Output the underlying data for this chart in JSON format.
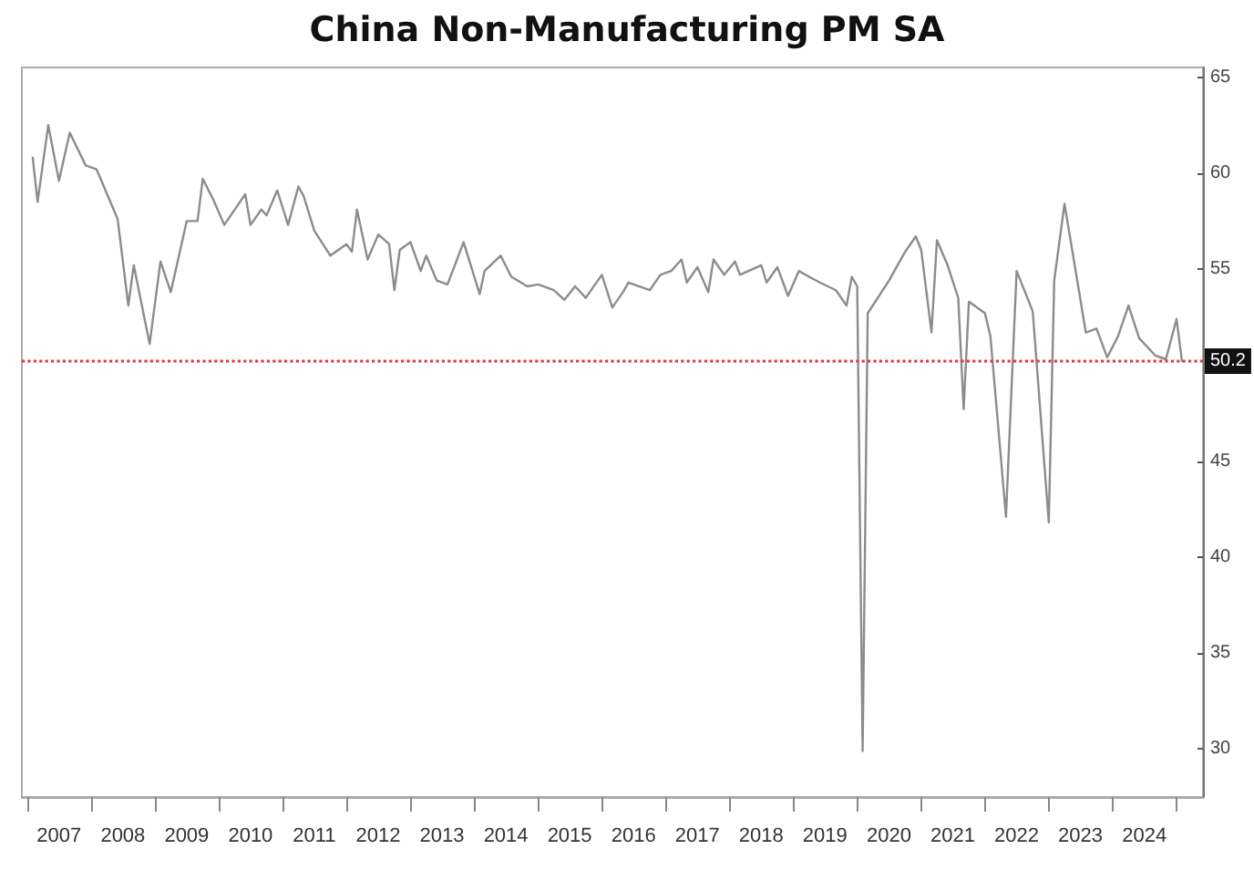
{
  "chart_data": {
    "type": "line",
    "title": "China Non-Manufacturing PM SA",
    "x": [
      "2007-02",
      "2007-03",
      "2007-05",
      "2007-07",
      "2007-09",
      "2007-12",
      "2008-02",
      "2008-06",
      "2008-08",
      "2008-09",
      "2008-12",
      "2009-02",
      "2009-04",
      "2009-07",
      "2009-09",
      "2009-10",
      "2009-12",
      "2010-02",
      "2010-06",
      "2010-07",
      "2010-09",
      "2010-10",
      "2010-12",
      "2011-02",
      "2011-04",
      "2011-05",
      "2011-07",
      "2011-10",
      "2012-01",
      "2012-02",
      "2012-03",
      "2012-05",
      "2012-07",
      "2012-09",
      "2012-10",
      "2012-11",
      "2013-01",
      "2013-03",
      "2013-04",
      "2013-06",
      "2013-08",
      "2013-11",
      "2014-02",
      "2014-03",
      "2014-06",
      "2014-08",
      "2014-11",
      "2015-01",
      "2015-04",
      "2015-06",
      "2015-08",
      "2015-10",
      "2016-01",
      "2016-03",
      "2016-05",
      "2016-06",
      "2016-10",
      "2016-12",
      "2017-02",
      "2017-04",
      "2017-05",
      "2017-07",
      "2017-09",
      "2017-10",
      "2017-12",
      "2018-02",
      "2018-03",
      "2018-07",
      "2018-08",
      "2018-10",
      "2018-12",
      "2019-02",
      "2019-04",
      "2019-06",
      "2019-09",
      "2019-11",
      "2019-12",
      "2020-01",
      "2020-02",
      "2020-03",
      "2020-07",
      "2020-10",
      "2020-12",
      "2021-01",
      "2021-03",
      "2021-04",
      "2021-06",
      "2021-08",
      "2021-09",
      "2021-10",
      "2022-01",
      "2022-02",
      "2022-05",
      "2022-07",
      "2022-10",
      "2023-01",
      "2023-02",
      "2023-04",
      "2023-08",
      "2023-10",
      "2023-12",
      "2024-02",
      "2024-04",
      "2024-06",
      "2024-09",
      "2024-11",
      "2025-01",
      "2025-02"
    ],
    "series": [
      {
        "color": "#8c8c8c",
        "values": [
          60.8,
          58.5,
          62.5,
          59.6,
          62.1,
          60.4,
          60.2,
          57.6,
          53.1,
          55.2,
          51.1,
          55.4,
          53.8,
          57.5,
          57.5,
          59.7,
          58.6,
          57.3,
          58.9,
          57.3,
          58.1,
          57.8,
          59.1,
          57.3,
          59.3,
          58.8,
          57.0,
          55.7,
          56.3,
          55.9,
          58.1,
          55.5,
          56.8,
          56.3,
          53.9,
          56.0,
          56.4,
          54.9,
          55.7,
          54.4,
          54.2,
          56.4,
          53.7,
          54.9,
          55.7,
          54.6,
          54.1,
          54.2,
          53.9,
          53.4,
          54.1,
          53.5,
          54.7,
          53.0,
          53.8,
          54.3,
          53.9,
          54.7,
          54.9,
          55.5,
          54.3,
          55.1,
          53.8,
          55.5,
          54.7,
          55.4,
          54.7,
          55.2,
          54.3,
          55.1,
          53.6,
          54.9,
          54.6,
          54.3,
          53.9,
          53.1,
          54.6,
          54.1,
          29.9,
          52.7,
          54.4,
          55.9,
          56.7,
          56.0,
          51.7,
          56.5,
          55.2,
          53.5,
          47.7,
          53.3,
          52.7,
          51.5,
          42.1,
          54.9,
          52.8,
          41.8,
          54.4,
          58.4,
          51.7,
          51.9,
          50.4,
          51.5,
          53.1,
          51.4,
          50.5,
          50.3,
          52.4,
          50.2
        ]
      }
    ],
    "xlim": [
      "2006-12",
      "2025-06"
    ],
    "xticks": [
      {
        "value": "2007-01",
        "label": null
      },
      {
        "value": "2007-07",
        "label": "2007"
      },
      {
        "value": "2008-01",
        "label": null
      },
      {
        "value": "2008-07",
        "label": "2008"
      },
      {
        "value": "2009-01",
        "label": null
      },
      {
        "value": "2009-07",
        "label": "2009"
      },
      {
        "value": "2010-01",
        "label": null
      },
      {
        "value": "2010-07",
        "label": "2010"
      },
      {
        "value": "2011-01",
        "label": null
      },
      {
        "value": "2011-07",
        "label": "2011"
      },
      {
        "value": "2012-01",
        "label": null
      },
      {
        "value": "2012-07",
        "label": "2012"
      },
      {
        "value": "2013-01",
        "label": null
      },
      {
        "value": "2013-07",
        "label": "2013"
      },
      {
        "value": "2014-01",
        "label": null
      },
      {
        "value": "2014-07",
        "label": "2014"
      },
      {
        "value": "2015-01",
        "label": null
      },
      {
        "value": "2015-07",
        "label": "2015"
      },
      {
        "value": "2016-01",
        "label": null
      },
      {
        "value": "2016-07",
        "label": "2016"
      },
      {
        "value": "2017-01",
        "label": null
      },
      {
        "value": "2017-07",
        "label": "2017"
      },
      {
        "value": "2018-01",
        "label": null
      },
      {
        "value": "2018-07",
        "label": "2018"
      },
      {
        "value": "2019-01",
        "label": null
      },
      {
        "value": "2019-07",
        "label": "2019"
      },
      {
        "value": "2020-01",
        "label": null
      },
      {
        "value": "2020-07",
        "label": "2020"
      },
      {
        "value": "2021-01",
        "label": null
      },
      {
        "value": "2021-07",
        "label": "2021"
      },
      {
        "value": "2022-01",
        "label": null
      },
      {
        "value": "2022-07",
        "label": "2022"
      },
      {
        "value": "2023-01",
        "label": null
      },
      {
        "value": "2023-07",
        "label": "2023"
      },
      {
        "value": "2024-01",
        "label": null
      },
      {
        "value": "2024-07",
        "label": "2024"
      },
      {
        "value": "2025-01",
        "label": null
      }
    ],
    "ylim": [
      27.5,
      65.5
    ],
    "yticks": [
      30,
      35,
      40,
      45,
      55,
      60,
      65
    ],
    "ref_lines": [
      {
        "axis": "y",
        "value": 50.2,
        "label": "50.2",
        "color": "#e03a3a",
        "line_style": "dotted"
      }
    ],
    "grid": false,
    "marker": "none",
    "line_style": "solid"
  }
}
